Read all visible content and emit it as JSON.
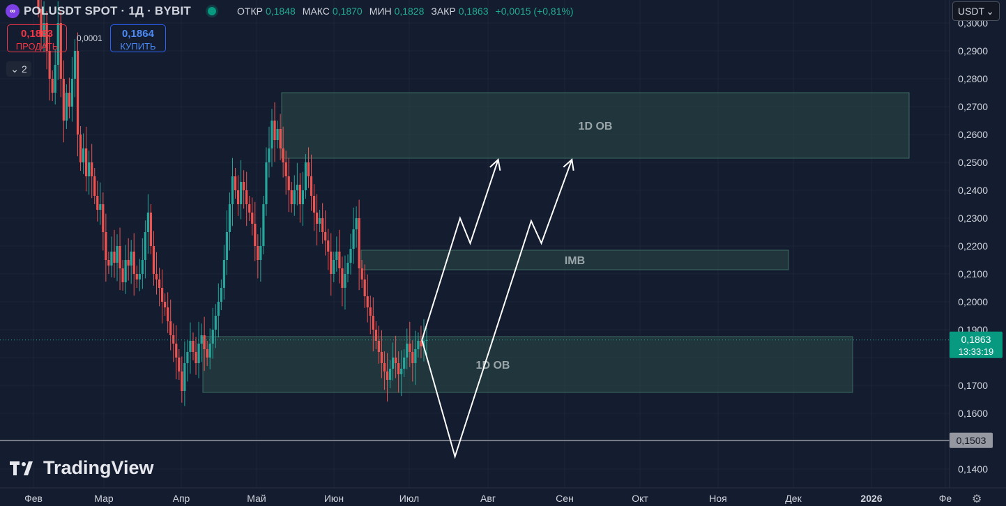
{
  "header": {
    "logo_text": "∞",
    "title": "POLUSDT SPOT · 1Д · BYBIT",
    "status_color": "#089981",
    "ohlc": [
      {
        "label": "ОТКР",
        "value": "0,1848"
      },
      {
        "label": "МАКС",
        "value": "0,1870"
      },
      {
        "label": "МИН",
        "value": "0,1828"
      },
      {
        "label": "ЗАКР",
        "value": "0,1863"
      }
    ],
    "change": "+0,0015 (+0,81%)"
  },
  "trade": {
    "sell_price": "0,1863",
    "sell_label": "ПРОДАТЬ",
    "spread": "0,0001",
    "buy_price": "0,1864",
    "buy_label": "КУПИТЬ"
  },
  "indicators_count": "2",
  "currency": "USDT",
  "brand": "TradingView",
  "colors": {
    "up": "#26a69a",
    "down": "#ef5350",
    "zone_fill": "#2a4a47",
    "zone_border": "#3c6b60",
    "price_tag": "#089981",
    "level_tag": "#9598a1"
  },
  "chart_data": {
    "type": "candlestick",
    "ylim": [
      0.135,
      0.3
    ],
    "y_ticks": [
      "0,3000",
      "0,2900",
      "0,2800",
      "0,2700",
      "0,2600",
      "0,2500",
      "0,2400",
      "0,2300",
      "0,2200",
      "0,2100",
      "0,2000",
      "0,1900",
      "0,1700",
      "0,1600",
      "0,1400"
    ],
    "x_labels": [
      "Фев",
      "Мар",
      "Апр",
      "Май",
      "Июн",
      "Июл",
      "Авг",
      "Сен",
      "Окт",
      "Ноя",
      "Дек",
      "2026",
      "Фе"
    ],
    "candles_close": [
      0.305,
      0.295,
      0.3,
      0.29,
      0.28,
      0.275,
      0.285,
      0.3,
      0.28,
      0.265,
      0.275,
      0.27,
      0.28,
      0.29,
      0.26,
      0.25,
      0.255,
      0.245,
      0.25,
      0.245,
      0.238,
      0.233,
      0.235,
      0.225,
      0.215,
      0.213,
      0.218,
      0.214,
      0.22,
      0.212,
      0.207,
      0.215,
      0.213,
      0.218,
      0.21,
      0.208,
      0.21,
      0.215,
      0.225,
      0.232,
      0.22,
      0.21,
      0.208,
      0.205,
      0.2,
      0.198,
      0.193,
      0.188,
      0.185,
      0.18,
      0.175,
      0.168,
      0.178,
      0.182,
      0.186,
      0.182,
      0.178,
      0.185,
      0.188,
      0.183,
      0.18,
      0.185,
      0.19,
      0.195,
      0.2,
      0.205,
      0.215,
      0.225,
      0.235,
      0.245,
      0.24,
      0.235,
      0.243,
      0.24,
      0.235,
      0.232,
      0.228,
      0.22,
      0.215,
      0.22,
      0.235,
      0.25,
      0.255,
      0.265,
      0.258,
      0.262,
      0.255,
      0.25,
      0.245,
      0.24,
      0.235,
      0.24,
      0.242,
      0.235,
      0.24,
      0.25,
      0.245,
      0.238,
      0.232,
      0.228,
      0.23,
      0.225,
      0.222,
      0.218,
      0.21,
      0.215,
      0.218,
      0.212,
      0.205,
      0.21,
      0.214,
      0.219,
      0.226,
      0.23,
      0.212,
      0.208,
      0.202,
      0.198,
      0.195,
      0.19,
      0.186,
      0.182,
      0.178,
      0.175,
      0.172,
      0.176,
      0.18,
      0.178,
      0.174,
      0.176,
      0.18,
      0.185,
      0.182,
      0.178,
      0.183,
      0.186,
      0.184,
      0.186,
      0.1863
    ],
    "zones": [
      {
        "label": "1D OB",
        "y_top": 0.275,
        "y_bottom": 0.2515
      },
      {
        "label": "IMB",
        "y_top": 0.2185,
        "y_bottom": 0.2115
      },
      {
        "label": "1D OB",
        "y_top": 0.1875,
        "y_bottom": 0.1675
      }
    ],
    "current_price": {
      "value": "0,1863",
      "timer": "13:33:19"
    },
    "level": {
      "value": "0,1503",
      "y": 0.1503
    },
    "scenario_paths": [
      [
        [
          "2025-07-06",
          0.1863
        ],
        [
          "2025-07-21",
          0.23
        ],
        [
          "2025-07-25",
          0.221
        ],
        [
          "2025-08-05",
          0.251
        ]
      ],
      [
        [
          "2025-07-06",
          0.1863
        ],
        [
          "2025-07-19",
          0.1445
        ],
        [
          "2025-08-18",
          0.229
        ],
        [
          "2025-08-22",
          0.221
        ],
        [
          "2025-09-03",
          0.251
        ]
      ]
    ]
  }
}
